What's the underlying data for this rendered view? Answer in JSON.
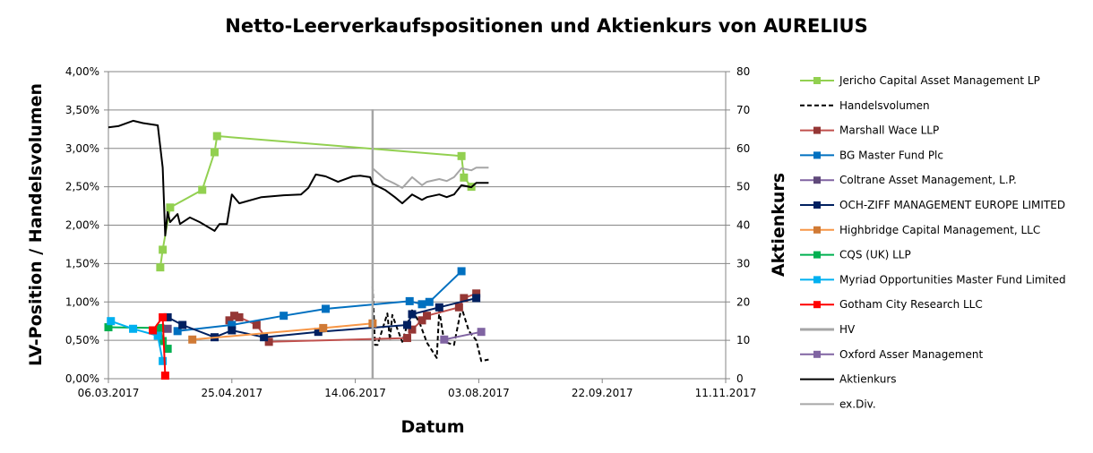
{
  "chart_data": {
    "type": "line",
    "title": "Netto-Leerverkaufspositionen und Aktienkurs von AURELIUS",
    "xlabel": "Datum",
    "ylabel": "LV-Position / Handelsvolumen",
    "y2label": "Aktienkurs",
    "xlim": [
      "2017-03-06",
      "2017-11-11"
    ],
    "x_ticks": [
      "2017-03-06",
      "2017-04-25",
      "2017-06-14",
      "2017-08-03",
      "2017-09-22",
      "2017-11-11"
    ],
    "x_tick_labels": [
      "06.03.2017",
      "25.04.2017",
      "14.06.2017",
      "03.08.2017",
      "22.09.2017",
      "11.11.2017"
    ],
    "ylim": [
      0,
      4
    ],
    "y_tick_labels": [
      "0,00%",
      "0,50%",
      "1,00%",
      "1,50%",
      "2,00%",
      "2,50%",
      "3,00%",
      "3,50%",
      "4,00%"
    ],
    "y2lim": [
      0,
      80
    ],
    "y2_tick_labels": [
      "0",
      "10",
      "20",
      "30",
      "40",
      "50",
      "60",
      "70",
      "80"
    ],
    "grid": true,
    "legend_position": "right",
    "series": [
      {
        "name": "Jericho Capital Asset Management LP",
        "axis": "left",
        "color": "#92D050",
        "marker_color": "#92D050",
        "marker": true,
        "dash": false,
        "points": [
          [
            "2017-03-27",
            1.45
          ],
          [
            "2017-03-28",
            1.68
          ],
          [
            "2017-03-31",
            2.23
          ],
          [
            "2017-04-13",
            2.46
          ],
          [
            "2017-04-18",
            2.95
          ],
          [
            "2017-04-19",
            3.16
          ],
          [
            "2017-07-27",
            2.9
          ],
          [
            "2017-07-28",
            2.62
          ],
          [
            "2017-07-31",
            2.5
          ]
        ]
      },
      {
        "name": "Handelsvolumen",
        "axis": "left",
        "color": "#000000",
        "marker": false,
        "dash": true,
        "points": [
          [
            "2017-06-21",
            1.2
          ],
          [
            "2017-06-22",
            0.44
          ],
          [
            "2017-06-23",
            0.44
          ],
          [
            "2017-06-27",
            0.85
          ],
          [
            "2017-06-28",
            0.5
          ],
          [
            "2017-06-29",
            0.83
          ],
          [
            "2017-07-01",
            0.65
          ],
          [
            "2017-07-03",
            0.48
          ],
          [
            "2017-07-05",
            0.7
          ],
          [
            "2017-07-07",
            0.89
          ],
          [
            "2017-07-10",
            0.73
          ],
          [
            "2017-07-13",
            0.47
          ],
          [
            "2017-07-17",
            0.27
          ],
          [
            "2017-07-18",
            0.89
          ],
          [
            "2017-07-20",
            0.48
          ],
          [
            "2017-07-24",
            0.44
          ],
          [
            "2017-07-27",
            0.93
          ],
          [
            "2017-07-30",
            0.62
          ],
          [
            "2017-08-02",
            0.5
          ],
          [
            "2017-08-04",
            0.23
          ],
          [
            "2017-08-07",
            0.25
          ]
        ]
      },
      {
        "name": "Marshall Wace LLP",
        "axis": "left",
        "color": "#C0504D",
        "marker_color": "#953735",
        "marker": true,
        "dash": false,
        "points": [
          [
            "2017-04-24",
            0.76
          ],
          [
            "2017-04-26",
            0.82
          ],
          [
            "2017-04-28",
            0.8
          ],
          [
            "2017-05-05",
            0.7
          ],
          [
            "2017-05-10",
            0.48
          ],
          [
            "2017-07-05",
            0.53
          ],
          [
            "2017-07-07",
            0.64
          ],
          [
            "2017-07-11",
            0.76
          ],
          [
            "2017-07-13",
            0.82
          ],
          [
            "2017-07-26",
            0.93
          ],
          [
            "2017-07-28",
            1.05
          ],
          [
            "2017-08-02",
            1.11
          ]
        ]
      },
      {
        "name": "BG Master Fund Plc",
        "axis": "left",
        "color": "#0070C0",
        "marker_color": "#0070C0",
        "marker": true,
        "dash": false,
        "points": [
          [
            "2017-04-03",
            0.62
          ],
          [
            "2017-04-25",
            0.7
          ],
          [
            "2017-05-16",
            0.82
          ],
          [
            "2017-06-02",
            0.91
          ],
          [
            "2017-07-06",
            1.01
          ],
          [
            "2017-07-11",
            0.97
          ],
          [
            "2017-07-14",
            1.0
          ],
          [
            "2017-07-27",
            1.4
          ]
        ]
      },
      {
        "name": "Coltrane Asset Management, L.P.",
        "axis": "left",
        "color": "#8064A2",
        "marker_color": "#604A7B",
        "marker": true,
        "dash": false,
        "points": [
          [
            "2017-03-30",
            0.65
          ]
        ]
      },
      {
        "name": "OCH-ZIFF MANAGEMENT EUROPE LIMITED",
        "axis": "left",
        "color": "#002060",
        "marker_color": "#002060",
        "marker": true,
        "dash": false,
        "points": [
          [
            "2017-03-30",
            0.8
          ],
          [
            "2017-04-05",
            0.7
          ],
          [
            "2017-04-18",
            0.54
          ],
          [
            "2017-04-25",
            0.63
          ],
          [
            "2017-05-08",
            0.54
          ],
          [
            "2017-05-30",
            0.61
          ],
          [
            "2017-07-05",
            0.7
          ],
          [
            "2017-07-07",
            0.84
          ],
          [
            "2017-07-18",
            0.93
          ],
          [
            "2017-08-02",
            1.05
          ]
        ]
      },
      {
        "name": "Highbridge Capital Management, LLC",
        "axis": "left",
        "color": "#F79646",
        "marker_color": "#D07A35",
        "marker": true,
        "dash": false,
        "points": [
          [
            "2017-04-09",
            0.51
          ],
          [
            "2017-06-01",
            0.66
          ],
          [
            "2017-06-21",
            0.72
          ]
        ]
      },
      {
        "name": "CQS (UK) LLP",
        "axis": "left",
        "color": "#00B050",
        "marker_color": "#00B050",
        "marker": true,
        "dash": false,
        "points": [
          [
            "2017-03-06",
            0.67
          ],
          [
            "2017-03-27",
            0.66
          ],
          [
            "2017-03-28",
            0.49
          ],
          [
            "2017-03-30",
            0.39
          ]
        ]
      },
      {
        "name": "Myriad Opportunities Master Fund Limited",
        "axis": "left",
        "color": "#00B0F0",
        "marker_color": "#00B0F0",
        "marker": true,
        "dash": false,
        "points": [
          [
            "2017-03-07",
            0.75
          ],
          [
            "2017-03-16",
            0.65
          ],
          [
            "2017-03-26",
            0.56
          ],
          [
            "2017-03-28",
            0.23
          ]
        ]
      },
      {
        "name": "Gotham City Research LLC",
        "axis": "left",
        "color": "#FF0000",
        "marker_color": "#FF0000",
        "marker": true,
        "dash": false,
        "points": [
          [
            "2017-03-24",
            0.63
          ],
          [
            "2017-03-28",
            0.8
          ],
          [
            "2017-03-29",
            0.04
          ]
        ]
      },
      {
        "name": "HV",
        "axis": "left",
        "color": "#A6A6A6",
        "marker": false,
        "dash": false,
        "wide": true,
        "points": [
          [
            "2017-06-21",
            0
          ],
          [
            "2017-06-21",
            3.51
          ]
        ]
      },
      {
        "name": "Oxford Asser Management",
        "axis": "left",
        "color": "#8064A2",
        "marker_color": "#8064A2",
        "marker": true,
        "dash": false,
        "points": [
          [
            "2017-07-20",
            0.51
          ],
          [
            "2017-08-04",
            0.61
          ]
        ]
      },
      {
        "name": "Aktienkurs",
        "axis": "right",
        "color": "#000000",
        "marker": false,
        "dash": false,
        "points": [
          [
            "2017-03-06",
            65.5
          ],
          [
            "2017-03-10",
            65.8
          ],
          [
            "2017-03-16",
            67.2
          ],
          [
            "2017-03-20",
            66.6
          ],
          [
            "2017-03-26",
            66.0
          ],
          [
            "2017-03-28",
            55.0
          ],
          [
            "2017-03-29",
            37.3
          ],
          [
            "2017-03-30",
            43.4
          ],
          [
            "2017-03-31",
            40.8
          ],
          [
            "2017-04-03",
            42.9
          ],
          [
            "2017-04-04",
            40.3
          ],
          [
            "2017-04-08",
            42.0
          ],
          [
            "2017-04-12",
            40.8
          ],
          [
            "2017-04-18",
            38.5
          ],
          [
            "2017-04-20",
            40.3
          ],
          [
            "2017-04-23",
            40.3
          ],
          [
            "2017-04-25",
            48.0
          ],
          [
            "2017-04-28",
            45.7
          ],
          [
            "2017-05-07",
            47.3
          ],
          [
            "2017-05-16",
            47.8
          ],
          [
            "2017-05-23",
            48.0
          ],
          [
            "2017-05-26",
            49.7
          ],
          [
            "2017-05-29",
            53.2
          ],
          [
            "2017-06-02",
            52.7
          ],
          [
            "2017-06-07",
            51.3
          ],
          [
            "2017-06-13",
            52.7
          ],
          [
            "2017-06-16",
            52.9
          ],
          [
            "2017-06-20",
            52.5
          ],
          [
            "2017-06-21",
            50.8
          ],
          [
            "2017-06-26",
            49.2
          ],
          [
            "2017-06-30",
            47.3
          ],
          [
            "2017-07-03",
            45.7
          ],
          [
            "2017-07-07",
            48.0
          ],
          [
            "2017-07-11",
            46.6
          ],
          [
            "2017-07-13",
            47.3
          ],
          [
            "2017-07-18",
            48.0
          ],
          [
            "2017-07-21",
            47.3
          ],
          [
            "2017-07-24",
            48.0
          ],
          [
            "2017-07-27",
            50.4
          ],
          [
            "2017-07-31",
            49.9
          ],
          [
            "2017-08-02",
            51.0
          ],
          [
            "2017-08-07",
            51.0
          ]
        ]
      },
      {
        "name": "ex.Div.",
        "axis": "right",
        "color": "#A6A6A6",
        "marker": false,
        "dash": false,
        "points": [
          [
            "2017-06-21",
            54.8
          ],
          [
            "2017-06-26",
            52.0
          ],
          [
            "2017-06-30",
            50.8
          ],
          [
            "2017-07-03",
            49.7
          ],
          [
            "2017-07-07",
            52.5
          ],
          [
            "2017-07-11",
            50.4
          ],
          [
            "2017-07-13",
            51.3
          ],
          [
            "2017-07-18",
            52.0
          ],
          [
            "2017-07-21",
            51.5
          ],
          [
            "2017-07-24",
            52.5
          ],
          [
            "2017-07-27",
            54.8
          ],
          [
            "2017-07-31",
            54.3
          ],
          [
            "2017-08-02",
            55.0
          ],
          [
            "2017-08-07",
            55.0
          ]
        ]
      }
    ]
  }
}
